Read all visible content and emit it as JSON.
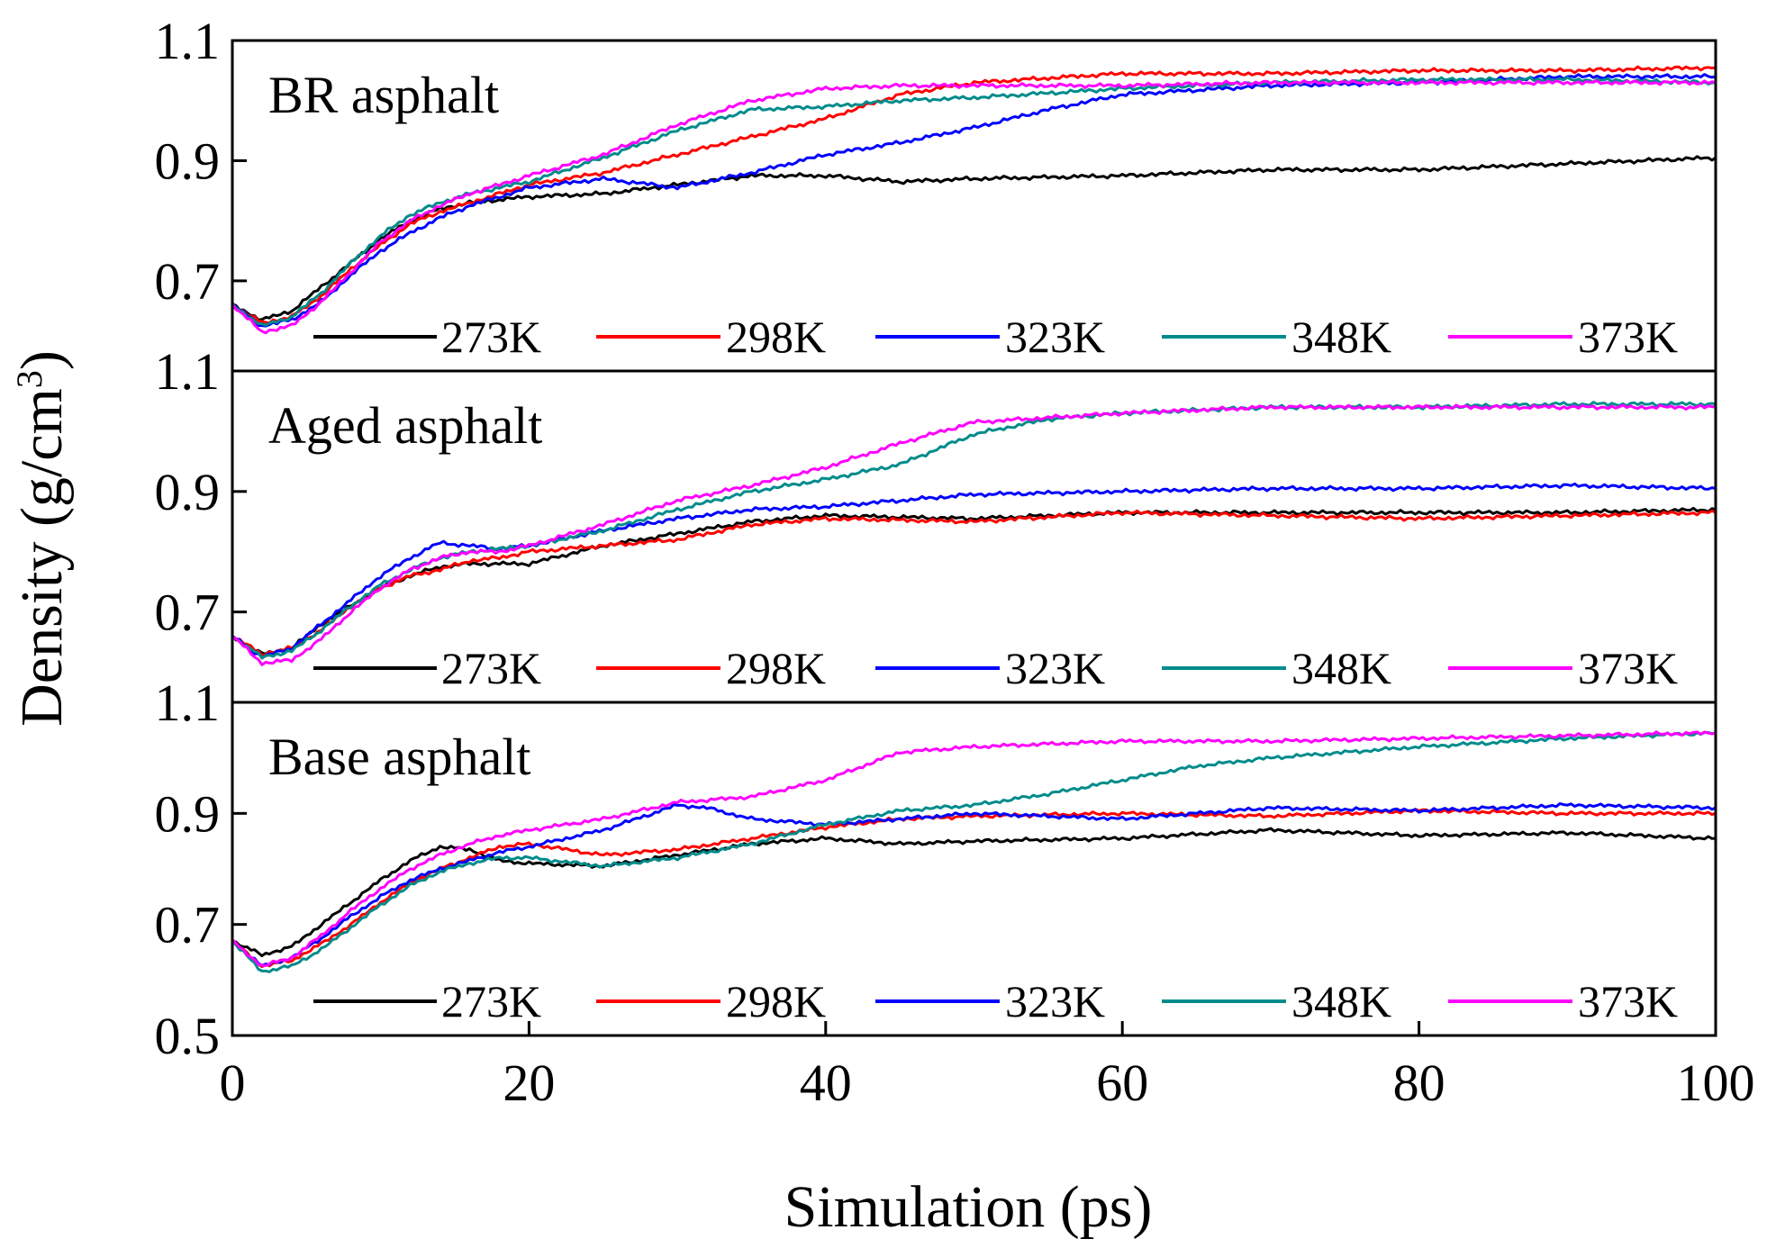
{
  "chart_data": {
    "type": "line",
    "xlabel": "Simulation (ps)",
    "ylabel_main": "Density (g/cm",
    "ylabel_sup": "3",
    "ylabel_close": ")",
    "xlim": [
      0,
      100
    ],
    "x_ticks": [
      0,
      20,
      40,
      60,
      80,
      100
    ],
    "x_tick_labels": [
      "0",
      "20",
      "40",
      "60",
      "80",
      "100"
    ],
    "legend_placement": "bottom of each panel",
    "colors": {
      "273K": "#000000",
      "298K": "#ff0000",
      "323K": "#0000ff",
      "348K": "#008b8b",
      "373K": "#ff00ff"
    },
    "panels": [
      {
        "title": "BR asphalt",
        "ylim": [
          0.55,
          1.1
        ],
        "y_ticks": [
          0.7,
          0.9,
          1.1
        ],
        "y_tick_labels": [
          "0.7",
          "0.9",
          "1.1"
        ],
        "series": [
          {
            "name": "273K",
            "x": [
              0,
              2,
              4,
              6,
              8,
              10,
              12,
              14,
              16,
              18,
              20,
              25,
              30,
              35,
              40,
              45,
              50,
              60,
              70,
              80,
              90,
              100
            ],
            "y": [
              0.66,
              0.635,
              0.65,
              0.69,
              0.73,
              0.77,
              0.8,
              0.82,
              0.83,
              0.835,
              0.84,
              0.845,
              0.86,
              0.875,
              0.875,
              0.865,
              0.87,
              0.875,
              0.885,
              0.885,
              0.895,
              0.905
            ]
          },
          {
            "name": "298K",
            "x": [
              0,
              2,
              4,
              6,
              8,
              10,
              12,
              14,
              16,
              18,
              20,
              25,
              30,
              35,
              40,
              45,
              50,
              60,
              70,
              80,
              90,
              100
            ],
            "y": [
              0.66,
              0.63,
              0.64,
              0.675,
              0.72,
              0.76,
              0.795,
              0.815,
              0.83,
              0.845,
              0.86,
              0.88,
              0.91,
              0.94,
              0.97,
              1.01,
              1.03,
              1.045,
              1.045,
              1.05,
              1.05,
              1.055
            ]
          },
          {
            "name": "323K",
            "x": [
              0,
              2,
              4,
              6,
              8,
              10,
              12,
              14,
              16,
              18,
              20,
              25,
              30,
              35,
              40,
              45,
              50,
              55,
              60,
              70,
              80,
              90,
              100
            ],
            "y": [
              0.66,
              0.625,
              0.635,
              0.665,
              0.71,
              0.75,
              0.78,
              0.805,
              0.825,
              0.84,
              0.855,
              0.87,
              0.855,
              0.88,
              0.91,
              0.93,
              0.955,
              0.985,
              1.01,
              1.025,
              1.03,
              1.04,
              1.04
            ]
          },
          {
            "name": "348K",
            "x": [
              0,
              2,
              4,
              6,
              8,
              10,
              12,
              14,
              16,
              18,
              20,
              25,
              30,
              35,
              40,
              45,
              50,
              60,
              70,
              80,
              90,
              100
            ],
            "y": [
              0.66,
              0.625,
              0.64,
              0.68,
              0.73,
              0.775,
              0.81,
              0.83,
              0.845,
              0.855,
              0.865,
              0.905,
              0.95,
              0.985,
              0.99,
              1.0,
              1.005,
              1.02,
              1.03,
              1.035,
              1.035,
              1.03
            ]
          },
          {
            "name": "373K",
            "x": [
              0,
              2,
              4,
              6,
              8,
              10,
              12,
              14,
              16,
              18,
              20,
              25,
              30,
              35,
              40,
              45,
              50,
              60,
              70,
              80,
              90,
              100
            ],
            "y": [
              0.66,
              0.615,
              0.625,
              0.665,
              0.715,
              0.765,
              0.8,
              0.825,
              0.845,
              0.86,
              0.875,
              0.91,
              0.96,
              1.0,
              1.02,
              1.025,
              1.025,
              1.025,
              1.03,
              1.03,
              1.03,
              1.03
            ]
          }
        ]
      },
      {
        "title": "Aged asphalt",
        "ylim": [
          0.55,
          1.1
        ],
        "y_ticks": [
          0.7,
          0.9,
          1.1
        ],
        "y_tick_labels": [
          "0.7",
          "0.9",
          "1.1"
        ],
        "series": [
          {
            "name": "273K",
            "x": [
              0,
              2,
              4,
              6,
              8,
              10,
              12,
              14,
              16,
              18,
              20,
              25,
              30,
              35,
              40,
              50,
              60,
              70,
              80,
              90,
              100
            ],
            "y": [
              0.66,
              0.63,
              0.64,
              0.68,
              0.71,
              0.74,
              0.76,
              0.775,
              0.78,
              0.78,
              0.78,
              0.81,
              0.83,
              0.85,
              0.86,
              0.855,
              0.865,
              0.865,
              0.865,
              0.865,
              0.87
            ]
          },
          {
            "name": "298K",
            "x": [
              0,
              2,
              4,
              6,
              8,
              10,
              12,
              14,
              16,
              18,
              20,
              25,
              30,
              35,
              40,
              50,
              60,
              70,
              80,
              90,
              100
            ],
            "y": [
              0.66,
              0.63,
              0.64,
              0.67,
              0.71,
              0.74,
              0.76,
              0.77,
              0.785,
              0.79,
              0.8,
              0.81,
              0.82,
              0.845,
              0.855,
              0.85,
              0.865,
              0.86,
              0.855,
              0.86,
              0.865
            ]
          },
          {
            "name": "323K",
            "x": [
              0,
              2,
              4,
              6,
              8,
              10,
              12,
              14,
              16,
              18,
              20,
              25,
              30,
              35,
              40,
              50,
              60,
              70,
              80,
              90,
              100
            ],
            "y": [
              0.66,
              0.625,
              0.64,
              0.68,
              0.72,
              0.76,
              0.79,
              0.815,
              0.81,
              0.805,
              0.81,
              0.835,
              0.855,
              0.87,
              0.875,
              0.895,
              0.9,
              0.905,
              0.905,
              0.91,
              0.905
            ]
          },
          {
            "name": "348K",
            "x": [
              0,
              2,
              4,
              6,
              8,
              10,
              12,
              14,
              16,
              18,
              20,
              25,
              30,
              35,
              40,
              45,
              50,
              55,
              60,
              70,
              80,
              90,
              100
            ],
            "y": [
              0.66,
              0.625,
              0.635,
              0.67,
              0.71,
              0.745,
              0.77,
              0.79,
              0.8,
              0.805,
              0.81,
              0.835,
              0.87,
              0.9,
              0.92,
              0.945,
              0.995,
              1.02,
              1.03,
              1.04,
              1.04,
              1.045,
              1.045
            ]
          },
          {
            "name": "373K",
            "x": [
              0,
              2,
              4,
              6,
              8,
              10,
              12,
              14,
              16,
              18,
              20,
              25,
              30,
              35,
              40,
              45,
              50,
              60,
              70,
              80,
              90,
              100
            ],
            "y": [
              0.66,
              0.615,
              0.62,
              0.655,
              0.7,
              0.74,
              0.77,
              0.79,
              0.8,
              0.8,
              0.81,
              0.845,
              0.885,
              0.91,
              0.94,
              0.98,
              1.015,
              1.03,
              1.04,
              1.04,
              1.04,
              1.04
            ]
          }
        ]
      },
      {
        "title": "Base asphalt",
        "ylim": [
          0.5,
          1.1
        ],
        "y_ticks": [
          0.5,
          0.7,
          0.9,
          1.1
        ],
        "y_tick_labels": [
          "0.5",
          "0.7",
          "0.9",
          "1.1"
        ],
        "series": [
          {
            "name": "273K",
            "x": [
              0,
              2,
              4,
              6,
              8,
              10,
              12,
              14,
              16,
              18,
              20,
              25,
              30,
              35,
              40,
              45,
              50,
              60,
              70,
              80,
              90,
              100
            ],
            "y": [
              0.67,
              0.645,
              0.66,
              0.7,
              0.74,
              0.78,
              0.815,
              0.84,
              0.835,
              0.815,
              0.81,
              0.805,
              0.825,
              0.845,
              0.855,
              0.845,
              0.85,
              0.855,
              0.87,
              0.86,
              0.865,
              0.855
            ]
          },
          {
            "name": "298K",
            "x": [
              0,
              2,
              4,
              6,
              8,
              10,
              12,
              14,
              16,
              18,
              20,
              25,
              30,
              35,
              40,
              45,
              50,
              60,
              70,
              80,
              90,
              100
            ],
            "y": [
              0.67,
              0.625,
              0.635,
              0.665,
              0.7,
              0.74,
              0.775,
              0.8,
              0.82,
              0.84,
              0.845,
              0.825,
              0.835,
              0.855,
              0.875,
              0.89,
              0.895,
              0.9,
              0.895,
              0.905,
              0.9,
              0.9
            ]
          },
          {
            "name": "323K",
            "x": [
              0,
              2,
              4,
              6,
              8,
              10,
              12,
              14,
              16,
              18,
              20,
              25,
              30,
              32,
              35,
              40,
              45,
              50,
              60,
              70,
              80,
              90,
              100
            ],
            "y": [
              0.67,
              0.625,
              0.64,
              0.675,
              0.715,
              0.75,
              0.78,
              0.8,
              0.815,
              0.83,
              0.84,
              0.87,
              0.915,
              0.91,
              0.89,
              0.88,
              0.89,
              0.9,
              0.89,
              0.91,
              0.905,
              0.915,
              0.91
            ]
          },
          {
            "name": "348K",
            "x": [
              0,
              2,
              4,
              6,
              8,
              10,
              12,
              14,
              16,
              18,
              20,
              25,
              30,
              35,
              40,
              45,
              50,
              55,
              60,
              65,
              70,
              80,
              90,
              100
            ],
            "y": [
              0.67,
              0.615,
              0.625,
              0.655,
              0.695,
              0.735,
              0.77,
              0.795,
              0.81,
              0.82,
              0.82,
              0.805,
              0.82,
              0.845,
              0.88,
              0.905,
              0.915,
              0.935,
              0.96,
              0.985,
              1.0,
              1.02,
              1.035,
              1.045
            ]
          },
          {
            "name": "373K",
            "x": [
              0,
              2,
              4,
              6,
              8,
              10,
              12,
              14,
              16,
              18,
              20,
              25,
              30,
              35,
              40,
              45,
              50,
              60,
              70,
              80,
              90,
              100
            ],
            "y": [
              0.67,
              0.625,
              0.64,
              0.68,
              0.725,
              0.765,
              0.8,
              0.825,
              0.845,
              0.86,
              0.87,
              0.89,
              0.92,
              0.93,
              0.96,
              1.01,
              1.02,
              1.03,
              1.03,
              1.035,
              1.04,
              1.045
            ]
          }
        ]
      }
    ]
  }
}
